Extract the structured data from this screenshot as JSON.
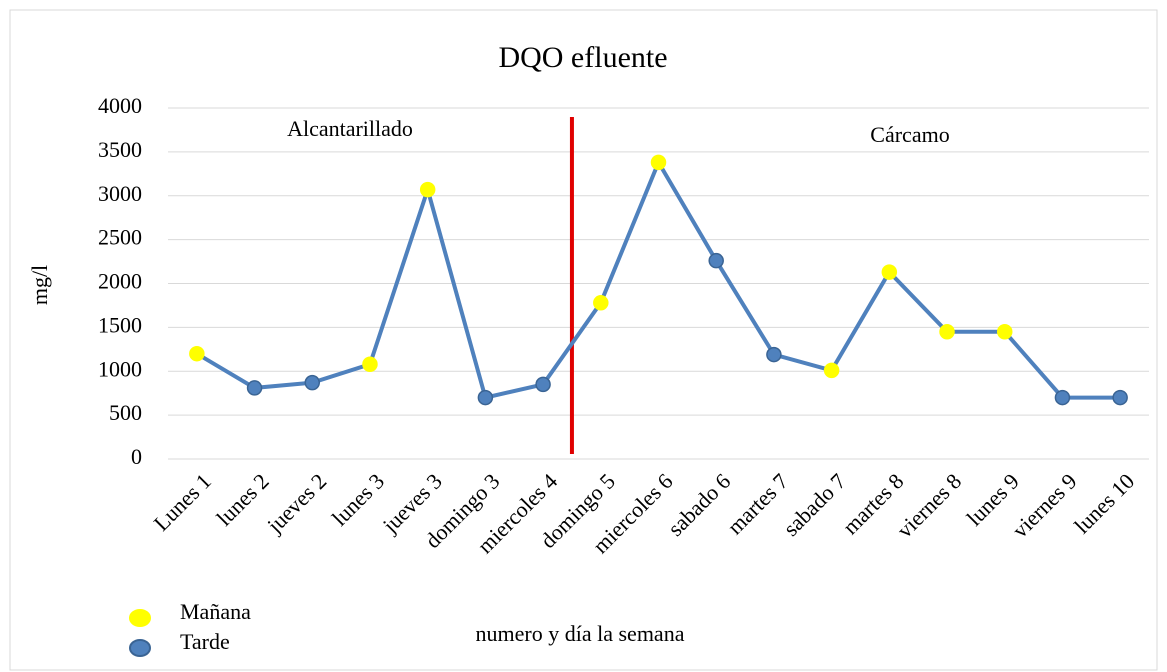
{
  "chart_data": {
    "type": "line",
    "title": "DQO efluente",
    "y_label": "mg/l",
    "x_label": "numero y día la semana",
    "annotations": [
      "Alcantarillado",
      "Cárcamo"
    ],
    "categories": [
      "Lunes 1",
      "lunes 2",
      "jueves 2",
      "lunes 3",
      "jueves 3",
      "domingo 3",
      "miercoles 4",
      "domingo 5",
      "miercoles 6",
      "sabado 6",
      "martes 7",
      "sabado 7",
      "martes 8",
      "viernes 8",
      "lunes 9",
      "viernes 9",
      "lunes 10"
    ],
    "series": [
      {
        "name": "DQO",
        "color": "#4f81bd",
        "values": [
          1200,
          810,
          870,
          1080,
          3070,
          700,
          850,
          1780,
          3380,
          2260,
          1190,
          1010,
          2130,
          1450,
          1450,
          700,
          700
        ],
        "point_colors": [
          "#ffff00",
          "#4f81bd",
          "#4f81bd",
          "#ffff00",
          "#ffff00",
          "#4f81bd",
          "#4f81bd",
          "#ffff00",
          "#ffff00",
          "#4f81bd",
          "#4f81bd",
          "#ffff00",
          "#ffff00",
          "#ffff00",
          "#ffff00",
          "#4f81bd",
          "#4f81bd"
        ]
      }
    ],
    "legend": [
      {
        "name": "Mañana",
        "color": "#ffff00"
      },
      {
        "name": "Tarde",
        "color": "#4f81bd"
      }
    ],
    "divider_color": "#e00000",
    "ylim": [
      0,
      4000
    ],
    "yticks": [
      0,
      500,
      1000,
      1500,
      2000,
      2500,
      3000,
      3500,
      4000
    ],
    "grid": true
  }
}
